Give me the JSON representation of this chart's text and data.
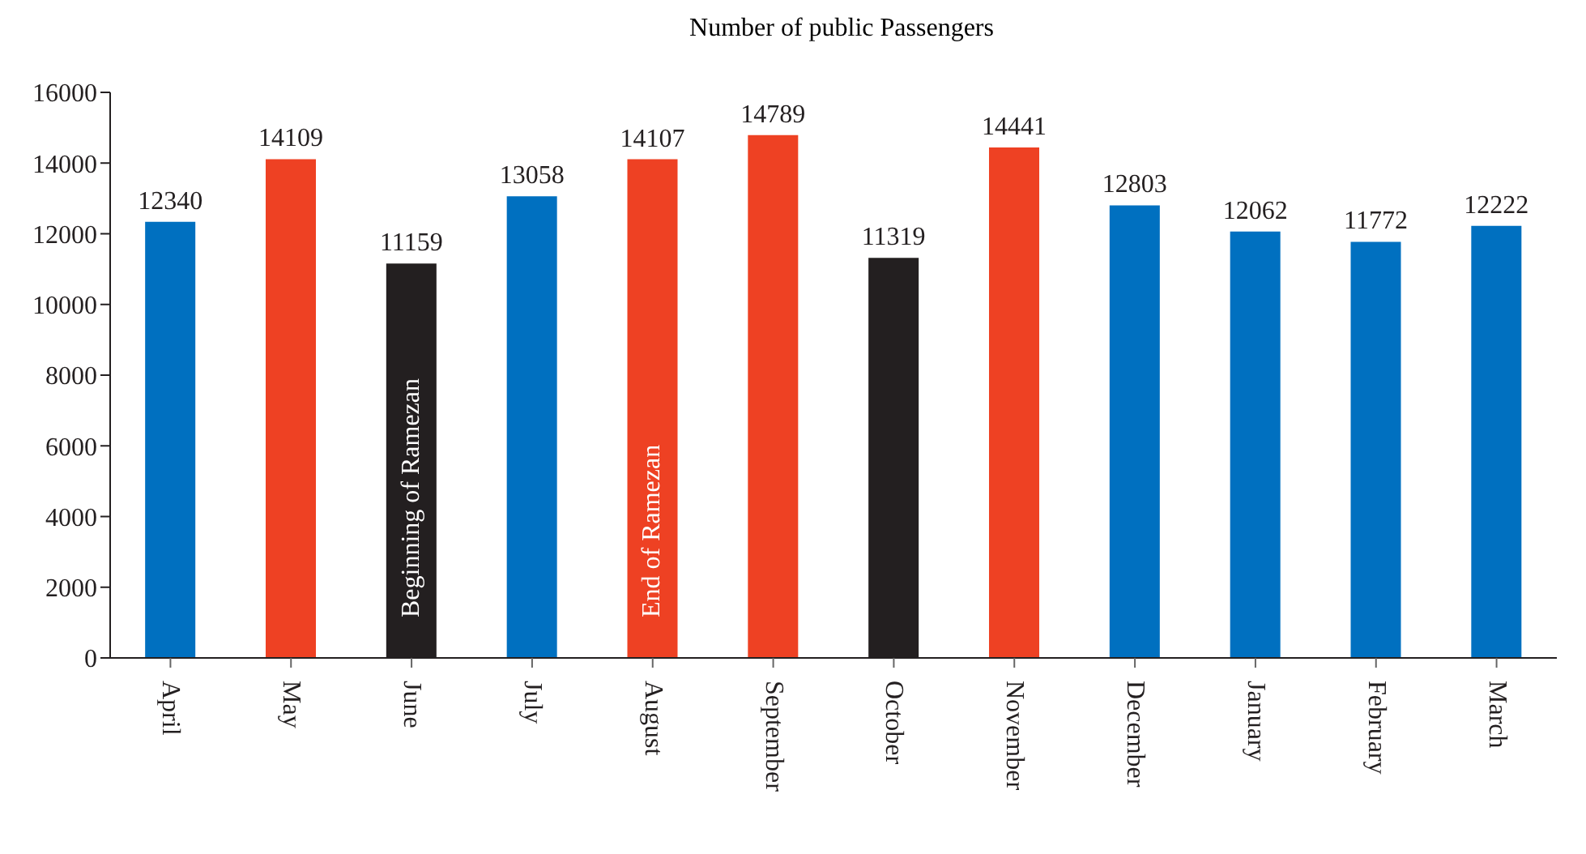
{
  "chart_data": {
    "type": "bar",
    "title": "Number of public Passengers",
    "categories": [
      "April",
      "May",
      "June",
      "July",
      "August",
      "September",
      "October",
      "November",
      "December",
      "January",
      "February",
      "March"
    ],
    "values": [
      12340,
      14109,
      11159,
      13058,
      14107,
      14789,
      11319,
      14441,
      12803,
      12062,
      11772,
      12222
    ],
    "colors": [
      "#0070c0",
      "#ee4123",
      "#231f20",
      "#0070c0",
      "#ee4123",
      "#ee4123",
      "#231f20",
      "#ee4123",
      "#0070c0",
      "#0070c0",
      "#0070c0",
      "#0070c0"
    ],
    "ylim": [
      0,
      16000
    ],
    "yticks": [
      0,
      2000,
      4000,
      6000,
      8000,
      10000,
      12000,
      14000,
      16000
    ],
    "data_labels": true,
    "grid": false,
    "legend": false,
    "annotations": [
      "Beginning of Ramezan",
      "End of Ramezan"
    ]
  }
}
